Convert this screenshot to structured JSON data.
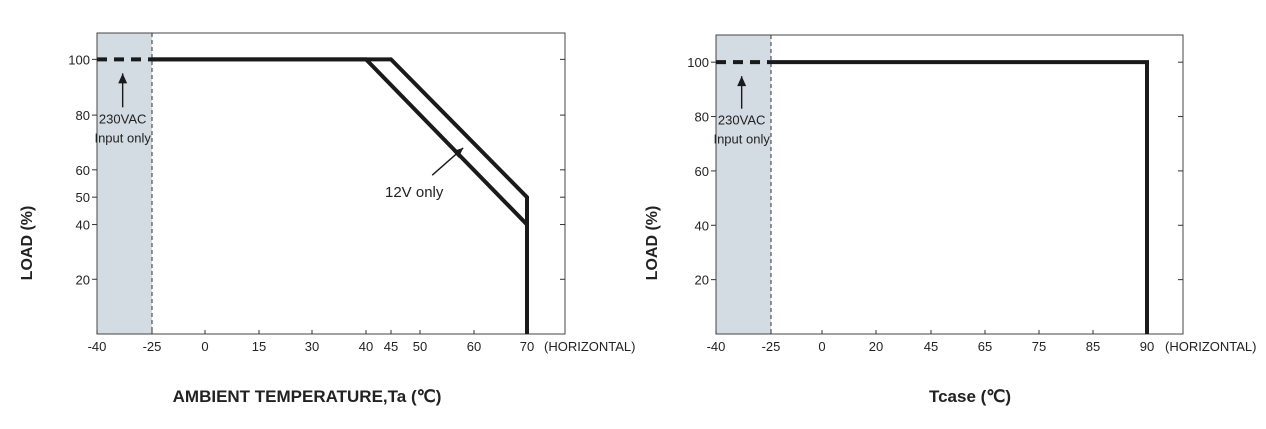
{
  "chart_data": [
    {
      "type": "line",
      "title": "",
      "xlabel": "AMBIENT TEMPERATURE,Ta (℃)",
      "ylabel": "LOAD (%)",
      "x_suffix": "(HORIZONTAL)",
      "xlim": [
        -40,
        70
      ],
      "ylim": [
        0,
        110
      ],
      "x_ticks": [
        -40,
        -25,
        0,
        15,
        30,
        40,
        45,
        50,
        60,
        70
      ],
      "y_ticks": [
        20,
        40,
        50,
        60,
        80,
        100
      ],
      "grid": false,
      "shaded_region": {
        "x": [
          -40,
          -25
        ],
        "color": "#d3dbe3"
      },
      "series": [
        {
          "x": [
            -25,
            40,
            70,
            70
          ],
          "y": [
            100,
            100,
            40,
            0
          ]
        },
        {
          "x": [
            -25,
            45,
            70,
            70
          ],
          "y": [
            100,
            100,
            50,
            0
          ]
        }
      ],
      "dashed_segment": {
        "x": [
          -40,
          -25
        ],
        "y": [
          100,
          100
        ]
      },
      "annotations": [
        {
          "text": "230VAC",
          "target": {
            "x": -33,
            "y": 100
          },
          "at": {
            "x": -33,
            "y": 77
          }
        },
        {
          "text": "Input only",
          "at": {
            "x": -33,
            "y": 70
          }
        },
        {
          "text": "12V only",
          "target": {
            "x": 58,
            "y": 68
          },
          "at": {
            "x": 49,
            "y": 50
          }
        }
      ]
    },
    {
      "type": "line",
      "title": "",
      "xlabel": "Tcase (℃)",
      "ylabel": "LOAD (%)",
      "x_suffix": "(HORIZONTAL)",
      "xlim": [
        -40,
        90
      ],
      "ylim": [
        0,
        110
      ],
      "x_ticks": [
        -40,
        -25,
        0,
        20,
        45,
        65,
        75,
        85,
        90
      ],
      "y_ticks": [
        20,
        40,
        60,
        80,
        100
      ],
      "grid": false,
      "shaded_region": {
        "x": [
          -40,
          -25
        ],
        "color": "#d3dbe3"
      },
      "series": [
        {
          "x": [
            -25,
            90,
            90
          ],
          "y": [
            100,
            100,
            0
          ]
        }
      ],
      "dashed_segment": {
        "x": [
          -40,
          -25
        ],
        "y": [
          100,
          100
        ]
      },
      "annotations": [
        {
          "text": "230VAC",
          "target": {
            "x": -33,
            "y": 100
          },
          "at": {
            "x": -33,
            "y": 77
          }
        },
        {
          "text": "Input only",
          "at": {
            "x": -33,
            "y": 70
          }
        }
      ]
    }
  ]
}
